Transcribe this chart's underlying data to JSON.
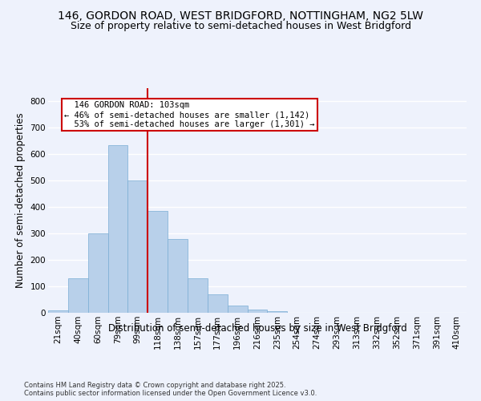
{
  "title1": "146, GORDON ROAD, WEST BRIDGFORD, NOTTINGHAM, NG2 5LW",
  "title2": "Size of property relative to semi-detached houses in West Bridgford",
  "xlabel": "Distribution of semi-detached houses by size in West Bridgford",
  "ylabel": "Number of semi-detached properties",
  "footnote": "Contains HM Land Registry data © Crown copyright and database right 2025.\nContains public sector information licensed under the Open Government Licence v3.0.",
  "bar_labels": [
    "21sqm",
    "40sqm",
    "60sqm",
    "79sqm",
    "99sqm",
    "118sqm",
    "138sqm",
    "157sqm",
    "177sqm",
    "196sqm",
    "216sqm",
    "235sqm",
    "254sqm",
    "274sqm",
    "293sqm",
    "313sqm",
    "332sqm",
    "352sqm",
    "371sqm",
    "391sqm",
    "410sqm"
  ],
  "bar_values": [
    10,
    130,
    300,
    635,
    500,
    385,
    280,
    130,
    70,
    28,
    12,
    6,
    0,
    0,
    0,
    0,
    0,
    0,
    0,
    0,
    0
  ],
  "bar_color": "#b8d0ea",
  "bar_edge_color": "#7aadd4",
  "property_label": "146 GORDON ROAD: 103sqm",
  "percent_smaller": 46,
  "count_smaller": 1142,
  "percent_larger": 53,
  "count_larger": 1301,
  "vline_x_index": 4.5,
  "vline_color": "#cc0000",
  "annotation_box_color": "#cc0000",
  "ylim": [
    0,
    850
  ],
  "yticks": [
    0,
    100,
    200,
    300,
    400,
    500,
    600,
    700,
    800
  ],
  "background_color": "#eef2fc",
  "grid_color": "#ffffff",
  "title_fontsize": 10,
  "subtitle_fontsize": 9,
  "axis_label_fontsize": 8.5,
  "tick_fontsize": 7.5,
  "annotation_fontsize": 7.5,
  "footnote_fontsize": 6
}
